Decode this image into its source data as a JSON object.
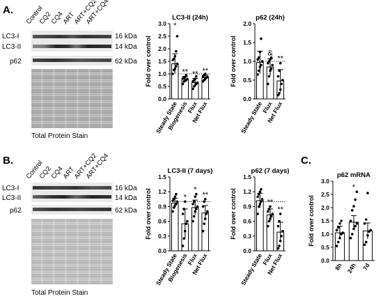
{
  "panels": {
    "A": {
      "letter": "A.",
      "lanes": [
        "Control",
        "CQ2",
        "CQ4",
        "ART",
        "ART+CQ2",
        "ART+CQ4"
      ],
      "bands": [
        {
          "left": "LC3-I",
          "right": "16 kDa"
        },
        {
          "left": "LC3-II",
          "right": "14 kDa"
        },
        {
          "left": "p62",
          "right": "62 kDa"
        }
      ],
      "stain_caption": "Total  Protein  Stain"
    },
    "B": {
      "letter": "B.",
      "lanes": [
        "Control",
        "CQ2",
        "CQ4",
        "ART",
        "ART+CQ2",
        "ART+CQ4"
      ],
      "bands": [
        {
          "left": "LC3-I",
          "right": "16 kDa"
        },
        {
          "left": "LC3-II",
          "right": "14 kDa"
        },
        {
          "left": "p62",
          "right": "62 kDa"
        }
      ],
      "stain_caption": "Total  Protein  Stain"
    },
    "C": {
      "letter": "C."
    }
  },
  "chart_data": [
    {
      "type": "bar",
      "title": "LC3-II (24h)",
      "ylabel": "Fold over control",
      "categories": [
        "Steady State",
        "Biogenesis",
        "Flux",
        "Net Flux"
      ],
      "values": [
        1.4,
        0.78,
        0.65,
        0.85
      ],
      "errors": [
        0.4,
        0.12,
        0.17,
        0.1
      ],
      "significance": [
        "*",
        "**",
        "**",
        "**"
      ],
      "yticks": [
        "0.0",
        "0.5",
        "1.0",
        "1.5",
        "2.0",
        "2.5",
        "3.0"
      ],
      "ylim": [
        0,
        3.0
      ],
      "reference_line": 1.0,
      "points": [
        [
          1.0,
          1.15,
          1.2,
          1.3,
          1.4,
          1.55,
          1.6,
          1.7,
          1.9,
          2.5
        ],
        [
          0.6,
          0.7,
          0.72,
          0.75,
          0.8,
          0.82,
          0.85,
          0.88,
          0.95
        ],
        [
          0.4,
          0.5,
          0.55,
          0.6,
          0.65,
          0.7,
          0.75,
          0.8,
          0.9
        ],
        [
          0.7,
          0.75,
          0.8,
          0.85,
          0.88,
          0.9,
          0.95,
          1.0
        ]
      ]
    },
    {
      "type": "bar",
      "title": "p62 (24h)",
      "ylabel": "Fold over control",
      "categories": [
        "Steady State",
        "Flux",
        "Net Flux"
      ],
      "values": [
        0.97,
        0.85,
        0.48
      ],
      "errors": [
        0.3,
        0.22,
        0.3
      ],
      "significance": [
        "",
        "&",
        "**"
      ],
      "yticks": [
        "0.0",
        "0.5",
        "1.0",
        "1.5",
        "2.0"
      ],
      "ylim": [
        0,
        2.0
      ],
      "reference_line": 1.0,
      "points": [
        [
          0.65,
          0.75,
          0.85,
          0.9,
          1.0,
          1.05,
          1.1,
          1.25,
          1.6
        ],
        [
          0.4,
          0.6,
          0.75,
          0.8,
          0.9,
          0.95,
          1.0,
          1.05,
          1.1
        ],
        [
          0.1,
          0.15,
          0.25,
          0.4,
          0.5,
          0.6,
          0.75,
          0.95
        ]
      ]
    },
    {
      "type": "bar",
      "title": "LC3-II  (7 days)",
      "ylabel": "Fold over control",
      "categories": [
        "Steady State",
        "Biogenesis",
        "Flux",
        "Net Flux"
      ],
      "values": [
        0.97,
        0.55,
        0.88,
        0.77
      ],
      "errors": [
        0.1,
        0.3,
        0.15,
        0.15
      ],
      "significance": [
        "",
        "*",
        "*",
        "**"
      ],
      "yticks": [
        "0.0",
        "0.3",
        "0.6",
        "0.9",
        "1.2",
        "1.5"
      ],
      "ylim": [
        0,
        1.5
      ],
      "reference_line": 1.0,
      "points": [
        [
          0.8,
          0.88,
          0.92,
          0.95,
          1.0,
          1.02,
          1.05,
          1.1,
          1.15
        ],
        [
          0.1,
          0.25,
          0.4,
          0.55,
          0.6,
          0.75,
          0.85,
          1.0
        ],
        [
          0.6,
          0.7,
          0.8,
          0.85,
          0.9,
          0.95,
          1.0,
          1.1,
          1.15
        ],
        [
          0.4,
          0.55,
          0.65,
          0.75,
          0.8,
          0.9,
          1.0,
          1.05
        ]
      ]
    },
    {
      "type": "bar",
      "title": "p62 (7 days)",
      "ylabel": "Fold over control",
      "categories": [
        "Steady State",
        "Flux",
        "Net Flux"
      ],
      "values": [
        1.02,
        0.73,
        0.38
      ],
      "errors": [
        0.15,
        0.12,
        0.2
      ],
      "significance": [
        "",
        "**",
        "**"
      ],
      "yticks": [
        "0.0",
        "0.3",
        "0.6",
        "0.9",
        "1.2",
        "1.5"
      ],
      "ylim": [
        0,
        1.5
      ],
      "reference_line": 1.0,
      "points": [
        [
          0.75,
          0.9,
          0.95,
          1.0,
          1.05,
          1.1,
          1.15,
          1.2,
          1.25
        ],
        [
          0.5,
          0.6,
          0.65,
          0.7,
          0.75,
          0.8,
          0.85,
          0.9
        ],
        [
          0.05,
          0.1,
          0.2,
          0.3,
          0.4,
          0.5,
          0.6,
          0.75
        ]
      ]
    },
    {
      "type": "bar",
      "title": "p62 mRNA",
      "ylabel": "Fold over control",
      "categories": [
        "8h",
        "24h",
        "7d"
      ],
      "values": [
        1.05,
        1.45,
        1.12
      ],
      "errors": [
        0.25,
        0.25,
        0.3
      ],
      "significance": [
        "",
        "*",
        ""
      ],
      "yticks": [
        "0.0",
        "0.5",
        "1.0",
        "1.5",
        "2.0",
        "2.5",
        "3.0"
      ],
      "ylim": [
        0,
        3.0
      ],
      "reference_line": null,
      "points": [
        [
          0.55,
          0.7,
          0.85,
          1.0,
          1.05,
          1.15,
          1.25,
          1.4,
          1.5
        ],
        [
          0.85,
          1.0,
          1.2,
          1.3,
          1.4,
          1.5,
          1.9,
          2.05,
          2.3,
          2.6
        ],
        [
          0.6,
          0.7,
          0.95,
          1.1,
          1.15,
          1.4,
          1.55,
          2.55
        ]
      ]
    }
  ]
}
